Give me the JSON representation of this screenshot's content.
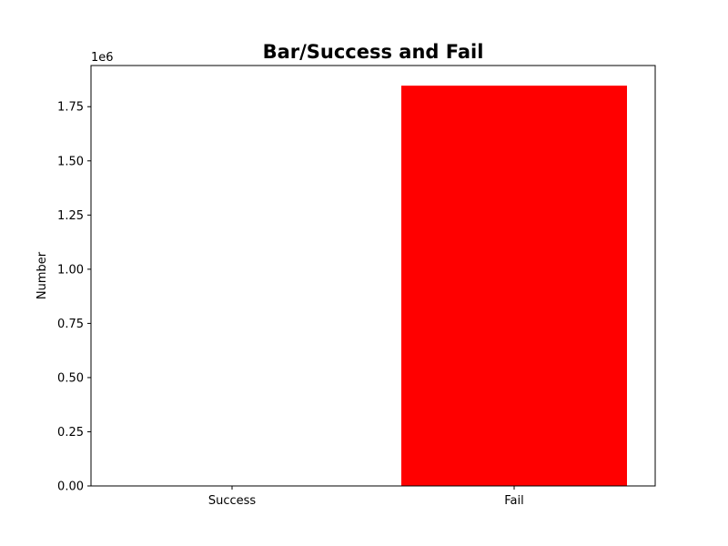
{
  "chart_data": {
    "type": "bar",
    "title": "Bar/Success and Fail",
    "xlabel": "",
    "ylabel": "Number",
    "y_scale_label": "1e6",
    "categories": [
      "Success",
      "Fail"
    ],
    "values": [
      0,
      1847000
    ],
    "colors": [
      "#ff0000",
      "#ff0000"
    ],
    "ylim": [
      0,
      1940000
    ],
    "yticks": [
      0,
      250000,
      500000,
      750000,
      1000000,
      1250000,
      1500000,
      1750000
    ],
    "ytick_labels": [
      "0.00",
      "0.25",
      "0.50",
      "0.75",
      "1.00",
      "1.25",
      "1.50",
      "1.75"
    ],
    "grid": false
  }
}
